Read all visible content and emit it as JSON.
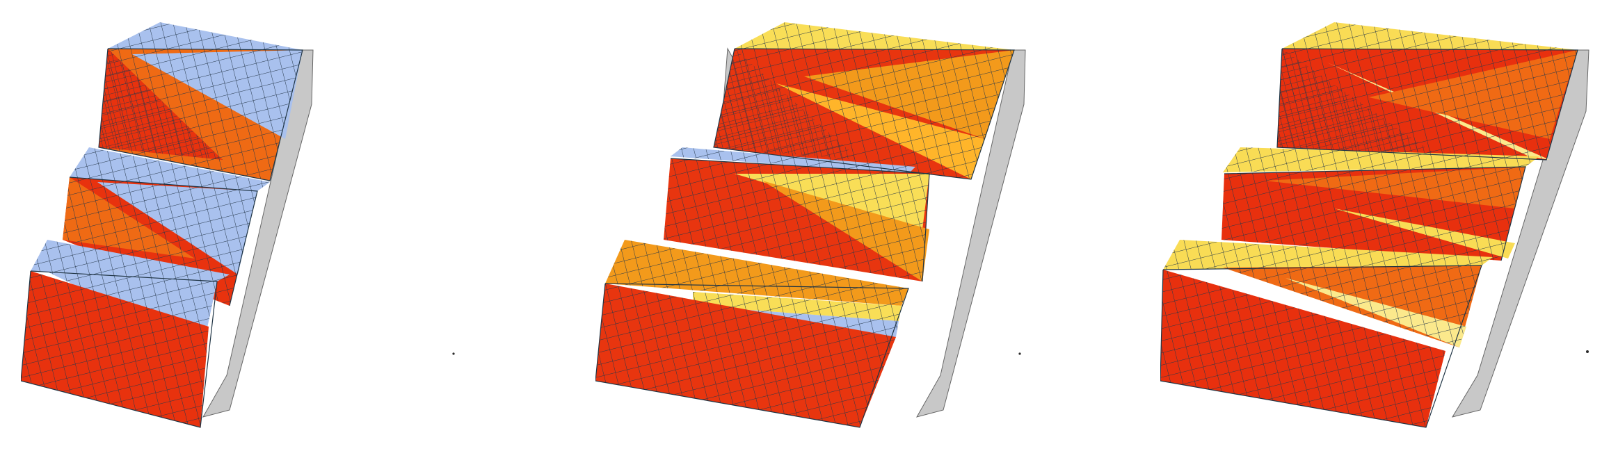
{
  "figure": {
    "panels": [
      {
        "id": "left",
        "palette": {
          "light": "#a9c1ee",
          "mid": "#ef6a14",
          "dark": "#e8320e",
          "fold": "#ff7a1a",
          "side": "#c8c8c8",
          "mesh": "#26384a"
        }
      },
      {
        "id": "middle",
        "palette": {
          "light": "#f9de57",
          "mid": "#f39a1b",
          "dark": "#e8350f",
          "fold": "#ffb52a",
          "side": "#c8c8c8",
          "mesh": "#26384a",
          "accent": "#a9c1ee"
        }
      },
      {
        "id": "right",
        "palette": {
          "light": "#f9dc55",
          "mid": "#f06a14",
          "dark": "#e8300e",
          "fold": "#ffb52a",
          "side": "#c8c8c8",
          "mesh": "#26384a",
          "accent": "#fbe98c"
        }
      }
    ]
  }
}
